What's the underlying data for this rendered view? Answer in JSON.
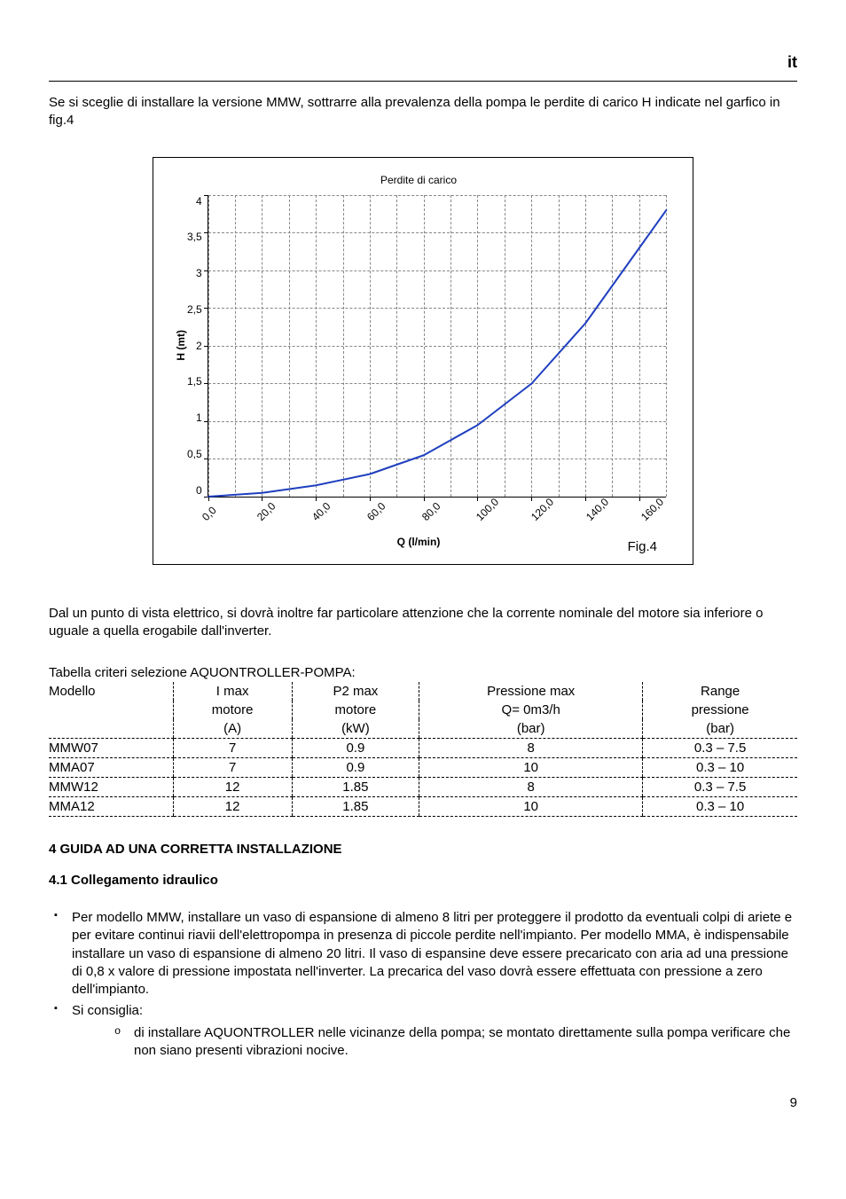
{
  "page": {
    "language_label": "it",
    "intro_paragraph": "Se si sceglie di installare la versione MMW, sottrarre alla prevalenza della pompa le perdite di carico H indicate nel garfico in fig.4",
    "after_chart_paragraph": "Dal un punto di vista elettrico, si dovrà inoltre far particolare attenzione che la corrente nominale del motore sia inferiore o uguale a quella erogabile dall'inverter.",
    "table_caption": "Tabella criteri selezione AQUONTROLLER-POMPA:",
    "section4_heading": "4  GUIDA AD UNA CORRETTA INSTALLAZIONE",
    "section41_heading": "4.1 Collegamento idraulico",
    "bullet1": "Per modello MMW, installare un vaso di espansione di almeno 8 litri per proteggere il prodotto da eventuali colpi di ariete e per evitare continui riavii dell'elettropompa in presenza di piccole perdite nell'impianto. Per modello MMA, è indispensabile installare un vaso di espansione di almeno 20 litri. Il vaso di espansine deve essere precaricato con aria ad una pressione di 0,8 x valore di pressione impostata nell'inverter. La precarica del vaso dovrà essere effettuata con pressione a zero dell'impianto.",
    "bullet2_lead": "Si consiglia:",
    "bullet2_sub1": "di installare  AQUONTROLLER nelle vicinanze della pompa; se montato direttamente sulla pompa verificare che non siano presenti vibrazioni nocive.",
    "page_number": "9"
  },
  "chart": {
    "type": "line",
    "title": "Perdite di carico",
    "ylabel": "H (mt)",
    "xlabel": "Q (l/min)",
    "fig_label": "Fig.4",
    "ylim": [
      0,
      4
    ],
    "ytick_step": 0.5,
    "yticks": [
      "4",
      "3,5",
      "3",
      "2,5",
      "2",
      "1,5",
      "1",
      "0,5",
      "0"
    ],
    "xlim": [
      0,
      170
    ],
    "xticks": [
      "0,0",
      "20,0",
      "40,0",
      "60,0",
      "80,0",
      "100,0",
      "120,0",
      "140,0",
      "160,0"
    ],
    "xtick_positions_pct": [
      0,
      11.76,
      23.53,
      35.29,
      47.06,
      58.82,
      70.59,
      82.35,
      94.12
    ],
    "minor_v_pct": [
      5.88,
      17.65,
      29.41,
      41.18,
      52.94,
      64.71,
      76.47,
      88.24,
      100
    ],
    "line_color": "#1f3fbf",
    "line_width": 2,
    "title_fontsize": 12,
    "label_fontsize": 12,
    "grid_color": "#888888",
    "background_color": "#ffffff",
    "data_points": [
      {
        "x": 0,
        "y": 0.0
      },
      {
        "x": 20,
        "y": 0.05
      },
      {
        "x": 40,
        "y": 0.15
      },
      {
        "x": 60,
        "y": 0.3
      },
      {
        "x": 80,
        "y": 0.55
      },
      {
        "x": 100,
        "y": 0.95
      },
      {
        "x": 120,
        "y": 1.5
      },
      {
        "x": 140,
        "y": 2.3
      },
      {
        "x": 160,
        "y": 3.3
      },
      {
        "x": 170,
        "y": 3.8
      }
    ]
  },
  "table": {
    "columns": [
      {
        "h1": "Modello",
        "h2": "",
        "h3": ""
      },
      {
        "h1": "I max",
        "h2": "motore",
        "h3": "(A)"
      },
      {
        "h1": "P2 max",
        "h2": "motore",
        "h3": "(kW)"
      },
      {
        "h1": "Pressione max",
        "h2": "Q= 0m3/h",
        "h3": "(bar)"
      },
      {
        "h1": "Range",
        "h2": "pressione",
        "h3": "(bar)"
      }
    ],
    "rows": [
      [
        "MMW07",
        "7",
        "0.9",
        "8",
        "0.3 – 7.5"
      ],
      [
        "MMA07",
        "7",
        "0.9",
        "10",
        "0.3 – 10"
      ],
      [
        "MMW12",
        "12",
        "1.85",
        "8",
        "0.3 – 7.5"
      ],
      [
        "MMA12",
        "12",
        "1.85",
        "10",
        "0.3 – 10"
      ]
    ]
  }
}
